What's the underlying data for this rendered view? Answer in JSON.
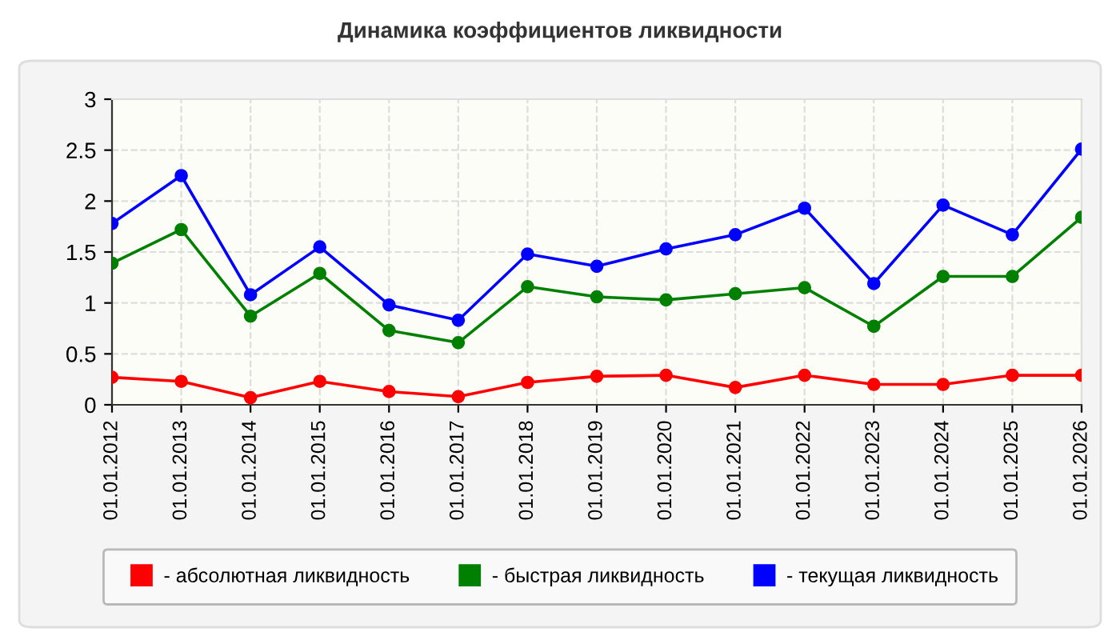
{
  "chart_data": {
    "type": "line",
    "title": "Динамика коэффициентов ликвидности",
    "categories": [
      "01.01.2012",
      "01.01.2013",
      "01.01.2014",
      "01.01.2015",
      "01.01.2016",
      "01.01.2017",
      "01.01.2018",
      "01.01.2019",
      "01.01.2020",
      "01.01.2021",
      "01.01.2022",
      "01.01.2023",
      "01.01.2024",
      "01.01.2025",
      "01.01.2026"
    ],
    "series": [
      {
        "name": "- абсолютная ликвидность",
        "color": "#ff0000",
        "values": [
          0.27,
          0.23,
          0.07,
          0.23,
          0.13,
          0.08,
          0.22,
          0.28,
          0.29,
          0.17,
          0.29,
          0.2,
          0.2,
          0.29,
          0.29
        ]
      },
      {
        "name": "- быстрая ликвидность",
        "color": "#008000",
        "values": [
          1.39,
          1.72,
          0.87,
          1.29,
          0.73,
          0.61,
          1.16,
          1.06,
          1.03,
          1.09,
          1.15,
          0.77,
          1.26,
          1.26,
          1.84
        ]
      },
      {
        "name": "- текущая ликвидность",
        "color": "#0000ff",
        "values": [
          1.78,
          2.25,
          1.08,
          1.55,
          0.98,
          0.83,
          1.48,
          1.36,
          1.53,
          1.67,
          1.93,
          1.19,
          1.96,
          1.67,
          2.51
        ]
      }
    ],
    "ylim": [
      0,
      3
    ],
    "yticks": [
      0,
      0.5,
      1,
      1.5,
      2,
      2.5,
      3
    ],
    "grid": true,
    "legend": "bottom",
    "marker": "circle",
    "line_style": "solid"
  }
}
